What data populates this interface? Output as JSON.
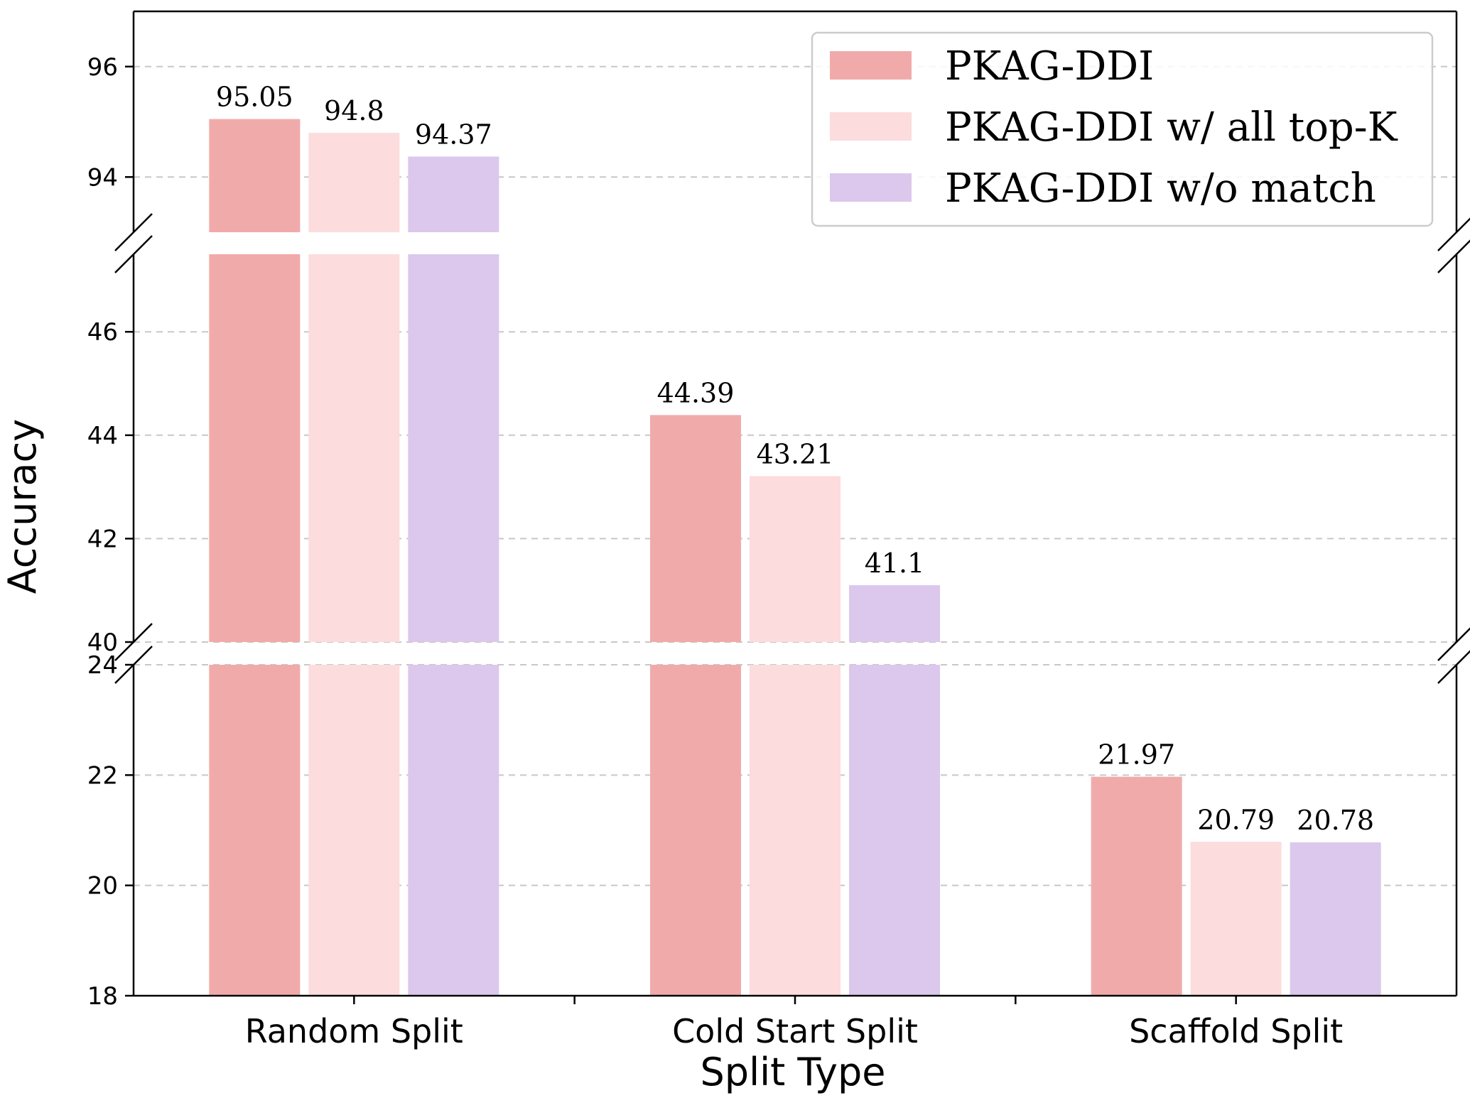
{
  "chart_data": {
    "type": "bar",
    "xlabel": "Split Type",
    "ylabel": "Accuracy",
    "categories": [
      "Random Split",
      "Cold Start Split",
      "Scaffold Split"
    ],
    "series": [
      {
        "name": "PKAG-DDI",
        "color": "#f1aaaa",
        "values": [
          95.05,
          44.39,
          21.97
        ],
        "labels": [
          "95.05",
          "44.39",
          "21.97"
        ]
      },
      {
        "name": "PKAG-DDI w/ all top-K",
        "color": "#fcdcdd",
        "values": [
          94.8,
          43.21,
          20.79
        ],
        "labels": [
          "94.8",
          "43.21",
          "20.79"
        ]
      },
      {
        "name": "PKAG-DDI w/o match",
        "color": "#dbc8ec",
        "values": [
          94.37,
          41.1,
          20.78
        ],
        "labels": [
          "94.37",
          "41.1",
          "20.78"
        ]
      }
    ],
    "broken_axis": true,
    "segments": [
      {
        "ylim": [
          18,
          24
        ],
        "ticks": [
          "18",
          "20",
          "22",
          "24"
        ]
      },
      {
        "ylim": [
          40,
          47.5
        ],
        "ticks": [
          "40",
          "42",
          "44",
          "46"
        ]
      },
      {
        "ylim": [
          93,
          97
        ],
        "ticks": [
          "94",
          "96"
        ]
      }
    ],
    "grid": "y-dashed",
    "legend_position": "top-right"
  }
}
